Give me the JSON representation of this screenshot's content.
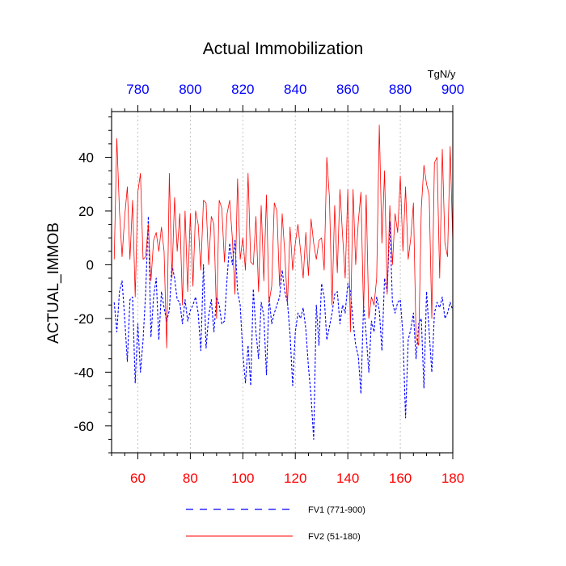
{
  "chart_data": {
    "type": "line",
    "title": "Actual Immobilization",
    "ylabel": "ACTUAL_IMMOB",
    "units_label": "TgN/y",
    "ylim": [
      -70,
      57
    ],
    "y_ticks": [
      40,
      20,
      0,
      -20,
      -40,
      -60
    ],
    "y_tick_labels": [
      "40",
      "20",
      "0",
      "-20",
      "-40",
      "-60"
    ],
    "bottom_axis": {
      "range": [
        50,
        180
      ],
      "ticks": [
        60,
        80,
        100,
        120,
        140,
        160,
        180
      ],
      "tick_labels": [
        "60",
        "80",
        "100",
        "120",
        "140",
        "160",
        "180"
      ],
      "color": "#ff0000"
    },
    "top_axis": {
      "range": [
        770,
        900
      ],
      "ticks": [
        780,
        800,
        820,
        840,
        860,
        880,
        900
      ],
      "tick_labels": [
        "780",
        "800",
        "820",
        "840",
        "860",
        "880",
        "900"
      ],
      "color": "#0000ff"
    },
    "grid": "vertical dashed at major ticks",
    "legend_position": "bottom-center",
    "series": [
      {
        "name": "FV1 (771-900)",
        "color": "#0000ff",
        "style": "dashed",
        "x_start": 771,
        "values": [
          -14,
          -25,
          -10,
          -6,
          -20,
          -36,
          -13,
          -12,
          -44,
          -22,
          -40,
          -28,
          -10,
          18,
          -27,
          -12,
          -5,
          -28,
          -10,
          -16,
          -21,
          -17,
          0,
          -5,
          -13,
          -14,
          -22,
          -13,
          -21,
          -17,
          -15,
          -12,
          -18,
          -32,
          0,
          -31,
          -19,
          -13,
          -25,
          -12,
          -15,
          -22,
          -21,
          -5,
          8,
          0,
          9,
          -10,
          -15,
          -33,
          -44,
          -30,
          -45,
          -9,
          -25,
          -35,
          -14,
          -19,
          -41,
          -12,
          -22,
          -18,
          -15,
          -12,
          -2,
          -10,
          -14,
          -26,
          -45,
          -25,
          -18,
          -20,
          -16,
          -24,
          -38,
          -49,
          -65,
          -15,
          -30,
          -7,
          -12,
          -28,
          -23,
          -18,
          -11,
          -10,
          -22,
          -15,
          -18,
          -7,
          -10,
          -21,
          -30,
          -34,
          -48,
          -15,
          -26,
          -40,
          -21,
          -25,
          -12,
          -17,
          -32,
          -5,
          -10,
          16,
          -14,
          -18,
          -14,
          -13,
          -26,
          -57,
          -28,
          -24,
          -18,
          -35,
          -22,
          -20,
          -46,
          -10,
          -25,
          -40,
          -18,
          -14,
          -16,
          -12,
          -20,
          -18,
          -14,
          -17
        ]
      },
      {
        "name": "FV2 (51-180)",
        "color": "#ff0000",
        "style": "solid",
        "x_start": 51,
        "values": [
          2,
          47,
          20,
          3,
          18,
          29,
          2,
          24,
          -12,
          27,
          34,
          2,
          3,
          15,
          -6,
          9,
          12,
          5,
          14,
          5,
          -31,
          34,
          -5,
          25,
          5,
          19,
          -15,
          20,
          -10,
          19,
          -8,
          20,
          15,
          -2,
          24,
          23,
          0,
          18,
          15,
          -20,
          24,
          21,
          1,
          19,
          24,
          10,
          -11,
          32,
          2,
          10,
          -2,
          34,
          1,
          0,
          18,
          -10,
          22,
          -6,
          26,
          -14,
          -8,
          23,
          20,
          -8,
          19,
          4,
          -15,
          14,
          -2,
          8,
          15,
          5,
          -5,
          12,
          -4,
          17,
          8,
          2,
          9,
          10,
          -2,
          40,
          25,
          -15,
          22,
          -3,
          28,
          11,
          -5,
          28,
          -25,
          28,
          0,
          16,
          27,
          -18,
          26,
          -20,
          -12,
          -15,
          -5,
          52,
          8,
          35,
          -11,
          22,
          0,
          19,
          12,
          33,
          5,
          29,
          2,
          10,
          23,
          -27,
          -30,
          21,
          37,
          30,
          26,
          -20,
          38,
          40,
          -5,
          43,
          8,
          3,
          44,
          8
        ]
      }
    ]
  }
}
